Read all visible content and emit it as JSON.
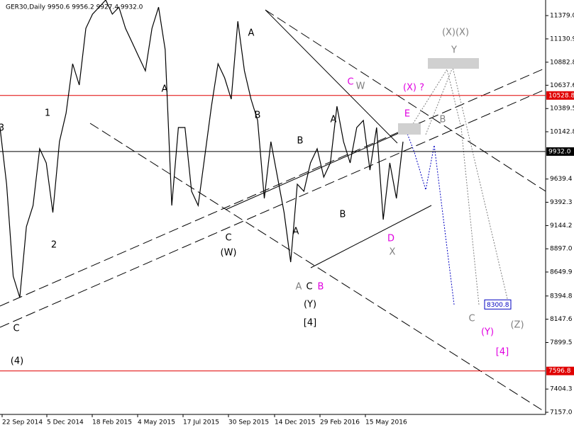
{
  "chart_data": {
    "type": "line",
    "title": "GER30,Daily  9950.6 9956.2 9927.4 9932.0",
    "x_labels": [
      "22 Sep 2014",
      "5 Dec 2014",
      "18 Feb 2015",
      "4 May 2015",
      "17 Jul 2015",
      "30 Sep 2015",
      "14 Dec 2015",
      "29 Feb 2016",
      "15 May 2016"
    ],
    "series": [
      {
        "name": "GER30",
        "color": "#000000",
        "values": [
          10188,
          9585,
          8605,
          8378,
          9132,
          9358,
          9962,
          9811,
          9283,
          10037,
          10339,
          10866,
          10640,
          11243,
          11394,
          11469,
          11545,
          11394,
          11469,
          11243,
          11093,
          10942,
          10791,
          11243,
          11469,
          11017,
          9358,
          10188,
          10188,
          9509,
          9358,
          9886,
          10414,
          10866,
          10716,
          10489,
          11319,
          10791,
          10489,
          10263,
          9434,
          10037,
          9660,
          9283,
          8755,
          9585,
          9509,
          9811,
          9962,
          9660,
          9811,
          10414,
          10037,
          9811,
          10188,
          10263,
          9735,
          10188,
          9208,
          9811,
          9434,
          10037
        ]
      }
    ],
    "ylim": [
      7157.0,
      11379.0
    ],
    "yticks": [
      {
        "value": 11379,
        "label": "11379.0"
      },
      11130.9,
      10882.8,
      10637.6,
      10389.5,
      10142.8,
      9639.4,
      9392.3,
      9144.2,
      {
        "value": 8897,
        "label": "8897.0"
      },
      8649.9,
      8394.8,
      8147.6,
      7899.5,
      7404.3,
      {
        "value": 7157,
        "label": "7157.0"
      }
    ],
    "hlines": [
      {
        "value": 10528.8,
        "color": "#e00000"
      },
      {
        "value": 7596.8,
        "color": "#e00000"
      },
      {
        "value": {
          "value": 9932,
          "label": "9932.0"
        },
        "color": "#000000"
      }
    ],
    "target": 8300.8,
    "wave_labels": [
      {
        "text": "3",
        "color": "#000000"
      },
      {
        "text": "1",
        "color": "#000000"
      },
      {
        "text": "2",
        "color": "#000000"
      },
      {
        "text": "C",
        "color": "#000000"
      },
      {
        "text": "(4)",
        "color": "#000000"
      },
      {
        "text": "A",
        "color": "#000000"
      },
      {
        "text": "A",
        "color": "#000000"
      },
      {
        "text": "B",
        "color": "#000000"
      },
      {
        "text": "C",
        "color": "#000000"
      },
      {
        "text": "(W)",
        "color": "#000000"
      },
      {
        "text": "B",
        "color": "#000000"
      },
      {
        "text": "A",
        "color": "#000000"
      },
      {
        "text": "A",
        "color": "#808080"
      },
      {
        "text": "C",
        "color": "#000000"
      },
      {
        "text": "B",
        "color": "#e000e0"
      },
      {
        "text": "(Y)",
        "color": "#000000"
      },
      {
        "text": "[4]",
        "color": "#000000"
      },
      {
        "text": "A",
        "color": "#000000"
      },
      {
        "text": "B",
        "color": "#000000"
      },
      {
        "text": "C",
        "color": "#e000e0"
      },
      {
        "text": "W",
        "color": "#808080"
      },
      {
        "text": "(X) ?",
        "color": "#e000e0"
      },
      {
        "text": "E",
        "color": "#e000e0"
      },
      {
        "text": "B",
        "color": "#808080"
      },
      {
        "text": "D",
        "color": "#e000e0"
      },
      {
        "text": "X",
        "color": "#808080"
      },
      {
        "text": "(X)(X)",
        "color": "#808080"
      },
      {
        "text": "Y",
        "color": "#808080"
      },
      {
        "text": "C",
        "color": "#808080"
      },
      {
        "text": "(Y)",
        "color": "#e000e0"
      },
      {
        "text": "(Z)",
        "color": "#808080"
      },
      {
        "text": "[4]",
        "color": "#e000e0"
      }
    ]
  }
}
